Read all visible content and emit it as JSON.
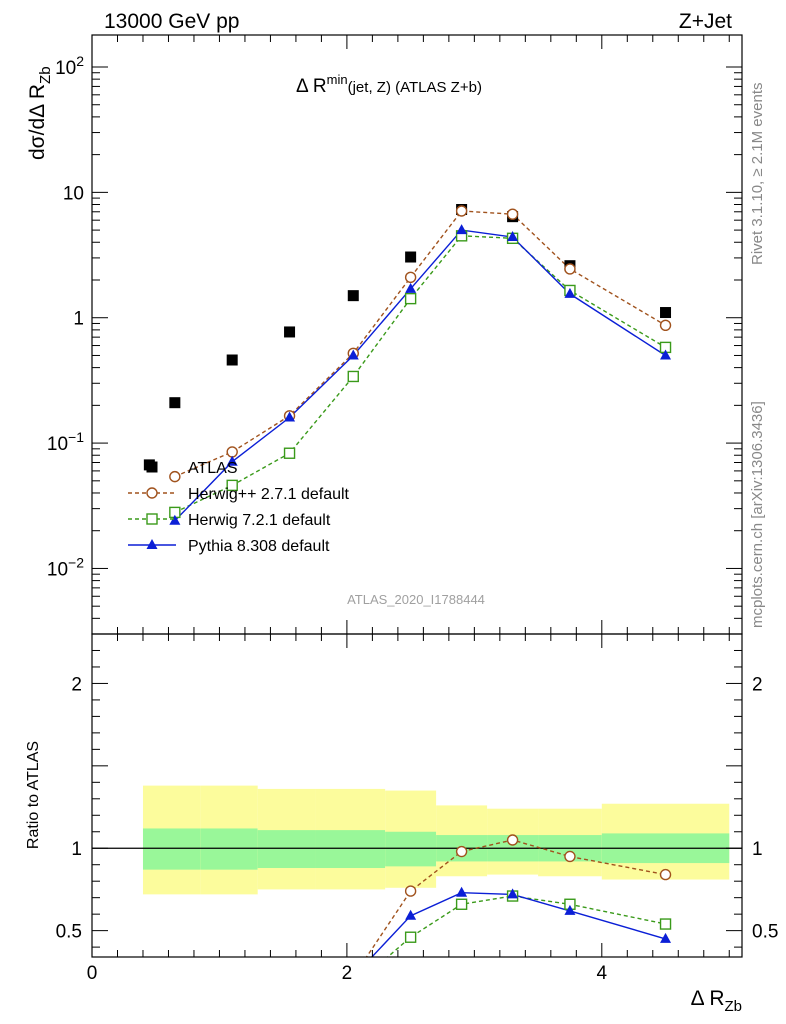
{
  "header": {
    "left": "13000 GeV pp",
    "right": "Z+Jet"
  },
  "side_text": {
    "rivet": "Rivet 3.1.10, ≥ 2.1M events",
    "mcplots": "mcplots.cern.ch [arXiv:1306.3436]"
  },
  "main_panel": {
    "title_main": "Δ R",
    "title_sup": "min",
    "title_rest": "(jet, Z) (ATLAS Z+b)",
    "ylabel_main": "dσ/dΔ R",
    "ylabel_sub": "Zb",
    "analysis_id": "ATLAS_2020_I1788444"
  },
  "ratio_panel": {
    "ylabel": "Ratio to ATLAS"
  },
  "xaxis": {
    "label_main": "Δ R",
    "label_sub": "Zb"
  },
  "colors": {
    "atlas": "#000000",
    "herwig_pp": "#a0521d",
    "herwig7": "#3a9a1a",
    "pythia": "#0b1fd6",
    "band_inner": "#99f799",
    "band_outer": "#fcfc9c"
  },
  "legend": [
    {
      "label": "ATLAS",
      "series": "atlas"
    },
    {
      "label": "Herwig++ 2.7.1 default",
      "series": "herwig_pp"
    },
    {
      "label": "Herwig 7.2.1 default",
      "series": "herwig7"
    },
    {
      "label": "Pythia 8.308 default",
      "series": "pythia"
    }
  ],
  "chart_data": [
    {
      "type": "scatter",
      "yscale": "log",
      "xlim": [
        0,
        5.1
      ],
      "ylim": [
        0.003,
        180
      ],
      "xlabel": "Δ R_Zb",
      "ylabel": "dσ/dΔ R_Zb",
      "title": "Δ R^min(jet, Z) (ATLAS Z+b)",
      "ytick_labels": [
        "10^-2",
        "10^-1",
        "1",
        "10",
        "10^2"
      ],
      "legend_position": "lower-left",
      "series": [
        {
          "name": "ATLAS",
          "key": "atlas",
          "x": [
            0.45,
            0.65,
            1.1,
            1.55,
            2.05,
            2.5,
            2.9,
            3.3,
            3.75,
            4.5
          ],
          "y": [
            0.067,
            0.21,
            0.46,
            0.77,
            1.5,
            3.05,
            7.3,
            6.4,
            2.6,
            1.1
          ]
        },
        {
          "name": "Herwig++ 2.7.1 default",
          "key": "herwig_pp",
          "x": [
            0.65,
            1.1,
            1.55,
            2.05,
            2.5,
            2.9,
            3.3,
            3.75,
            4.5
          ],
          "y": [
            0.054,
            0.085,
            0.165,
            0.52,
            2.1,
            7.1,
            6.7,
            2.45,
            0.87
          ]
        },
        {
          "name": "Herwig 7.2.1 default",
          "key": "herwig7",
          "x": [
            0.65,
            1.1,
            1.55,
            2.05,
            2.5,
            2.9,
            3.3,
            3.75,
            4.5
          ],
          "y": [
            0.028,
            0.046,
            0.083,
            0.34,
            1.42,
            4.5,
            4.3,
            1.65,
            0.58
          ]
        },
        {
          "name": "Pythia 8.308 default",
          "key": "pythia",
          "x": [
            0.65,
            1.1,
            1.55,
            2.05,
            2.5,
            2.9,
            3.3,
            3.75,
            4.5
          ],
          "y": [
            0.024,
            0.071,
            0.16,
            0.5,
            1.7,
            5.0,
            4.4,
            1.55,
            0.5
          ]
        }
      ]
    },
    {
      "type": "line",
      "xlim": [
        0,
        5.1
      ],
      "ylim": [
        0.34,
        2.3
      ],
      "ylabel": "Ratio to ATLAS",
      "xticks": [
        0,
        2,
        4
      ],
      "yticks": [
        0.5,
        1,
        2
      ],
      "bands": {
        "edges": [
          0.4,
          0.85,
          1.3,
          1.75,
          2.3,
          2.7,
          3.1,
          3.5,
          4.0,
          5.0
        ],
        "inner_lo": [
          0.87,
          0.87,
          0.88,
          0.88,
          0.89,
          0.92,
          0.92,
          0.92,
          0.91
        ],
        "inner_hi": [
          1.12,
          1.12,
          1.11,
          1.11,
          1.1,
          1.08,
          1.08,
          1.08,
          1.09
        ],
        "outer_lo": [
          0.72,
          0.72,
          0.75,
          0.75,
          0.76,
          0.83,
          0.84,
          0.83,
          0.81
        ],
        "outer_hi": [
          1.38,
          1.38,
          1.36,
          1.36,
          1.35,
          1.26,
          1.24,
          1.24,
          1.27
        ]
      },
      "series": [
        {
          "name": "Herwig++ 2.7.1 default",
          "key": "herwig_pp",
          "x": [
            2.05,
            2.5,
            2.9,
            3.3,
            3.75,
            4.5
          ],
          "y": [
            0.22,
            0.74,
            0.98,
            1.05,
            0.95,
            0.84
          ]
        },
        {
          "name": "Herwig 7.2.1 default",
          "key": "herwig7",
          "x": [
            2.05,
            2.5,
            2.9,
            3.3,
            3.75,
            4.5
          ],
          "y": [
            0.16,
            0.46,
            0.66,
            0.71,
            0.66,
            0.54
          ]
        },
        {
          "name": "Pythia 8.308 default",
          "key": "pythia",
          "x": [
            2.05,
            2.5,
            2.9,
            3.3,
            3.75,
            4.5
          ],
          "y": [
            0.22,
            0.59,
            0.73,
            0.72,
            0.62,
            0.45
          ]
        }
      ]
    }
  ]
}
